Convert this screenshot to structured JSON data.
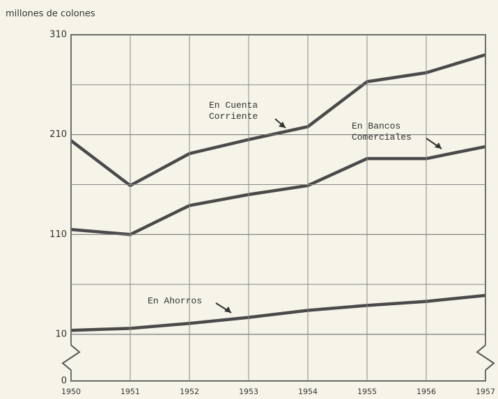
{
  "chart_data": {
    "type": "line",
    "y_axis_label": "millones de colones",
    "categories": [
      "1950",
      "1951",
      "1952",
      "1953",
      "1954",
      "1955",
      "1956",
      "1957"
    ],
    "series": [
      {
        "name": "En Cuenta Corriente",
        "color": "#4a4a4a",
        "values": [
          204,
          159,
          191,
          205,
          218,
          263,
          272,
          290
        ]
      },
      {
        "name": "En Bancos Comerciales",
        "color": "#4a4a4a",
        "values": [
          115,
          110,
          139,
          150,
          159,
          186,
          186,
          198
        ]
      },
      {
        "name": "En Ahorros",
        "color": "#4a4a4a",
        "values": [
          14,
          16,
          21,
          27,
          34,
          39,
          43,
          49
        ]
      }
    ],
    "ylim": [
      0,
      310
    ],
    "yticks": [
      0,
      10,
      110,
      210,
      310
    ],
    "yminor": [
      60,
      160,
      260
    ],
    "axis_break": true,
    "grid": true
  }
}
